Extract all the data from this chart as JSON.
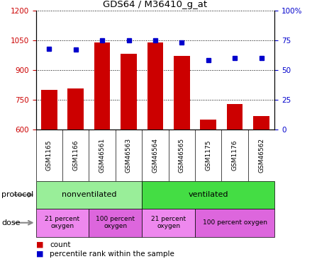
{
  "title": "GDS64 / M36410_g_at",
  "samples": [
    "GSM1165",
    "GSM1166",
    "GSM46561",
    "GSM46563",
    "GSM46564",
    "GSM46565",
    "GSM1175",
    "GSM1176",
    "GSM46562"
  ],
  "counts": [
    800,
    805,
    1040,
    980,
    1040,
    970,
    650,
    730,
    668
  ],
  "percentiles": [
    68,
    67,
    75,
    75,
    75,
    73,
    58,
    60,
    60
  ],
  "ylim_left": [
    600,
    1200
  ],
  "ylim_right": [
    0,
    100
  ],
  "yticks_left": [
    600,
    750,
    900,
    1050,
    1200
  ],
  "yticks_right": [
    0,
    25,
    50,
    75,
    100
  ],
  "bar_color": "#cc0000",
  "dot_color": "#0000cc",
  "protocol_groups": [
    {
      "label": "nonventilated",
      "start": 0,
      "end": 4,
      "color": "#99ee99"
    },
    {
      "label": "ventilated",
      "start": 4,
      "end": 9,
      "color": "#44dd44"
    }
  ],
  "dose_groups": [
    {
      "label": "21 percent\noxygen",
      "start": 0,
      "end": 2,
      "color": "#ee88ee"
    },
    {
      "label": "100 percent\noxygen",
      "start": 2,
      "end": 4,
      "color": "#dd66dd"
    },
    {
      "label": "21 percent\noxygen",
      "start": 4,
      "end": 6,
      "color": "#ee88ee"
    },
    {
      "label": "100 percent oxygen",
      "start": 6,
      "end": 9,
      "color": "#dd66dd"
    }
  ],
  "legend_count_color": "#cc0000",
  "legend_dot_color": "#0000cc",
  "bg_color": "#ffffff",
  "tick_label_color_left": "#cc0000",
  "tick_label_color_right": "#0000cc",
  "sample_bg_color": "#cccccc",
  "plot_bg_color": "#ffffff"
}
